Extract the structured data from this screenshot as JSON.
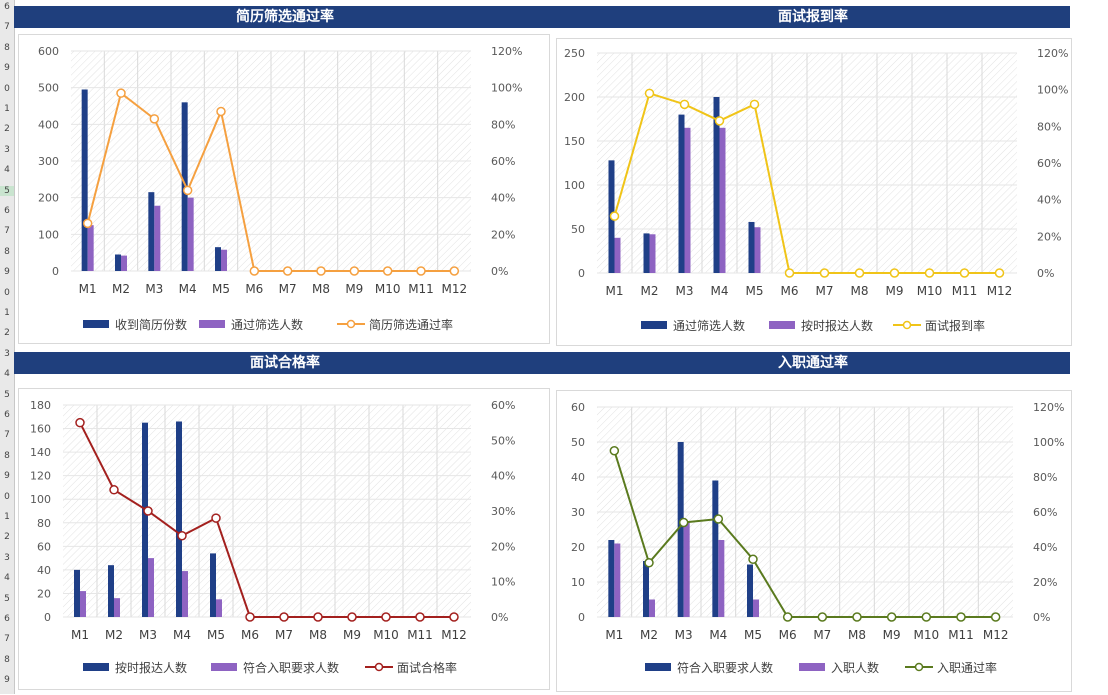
{
  "row_header": [
    "6",
    "7",
    "8",
    "9",
    "0",
    "1",
    "2",
    "3",
    "4",
    "5",
    "6",
    "7",
    "8",
    "9",
    "0",
    "1",
    "2",
    "3",
    "4",
    "5",
    "6",
    "7",
    "8",
    "9",
    "0",
    "1",
    "2",
    "3",
    "4",
    "5",
    "6",
    "7",
    "8",
    "9"
  ],
  "charts": [
    {
      "band_title": "简历筛选通过率",
      "chart_data": {
        "type": "bar+line",
        "categories": [
          "M1",
          "M2",
          "M3",
          "M4",
          "M5",
          "M6",
          "M7",
          "M8",
          "M9",
          "M10",
          "M11",
          "M12"
        ],
        "ylim": [
          0,
          600
        ],
        "yticks": [
          "0",
          "100",
          "200",
          "300",
          "400",
          "500",
          "600"
        ],
        "y2lim": [
          0,
          1.2
        ],
        "y2ticks": [
          "0%",
          "20%",
          "40%",
          "60%",
          "80%",
          "100%",
          "120%"
        ],
        "series": [
          {
            "name": "收到简历份数",
            "kind": "bar",
            "color": "#1f3f87",
            "values": [
              495,
              45,
              215,
              460,
              65,
              0,
              0,
              0,
              0,
              0,
              0,
              0
            ]
          },
          {
            "name": "通过筛选人数",
            "kind": "bar",
            "color": "#8e63c2",
            "values": [
              125,
              42,
              178,
              200,
              58,
              0,
              0,
              0,
              0,
              0,
              0,
              0
            ]
          },
          {
            "name": "简历筛选通过率",
            "kind": "line",
            "axis": "right",
            "color": "#f5a040",
            "marker_fill": "#ffffff",
            "values": [
              0.26,
              0.97,
              0.83,
              0.44,
              0.87,
              0,
              0,
              0,
              0,
              0,
              0,
              0
            ]
          }
        ],
        "grid": true,
        "legend_position": "bottom"
      }
    },
    {
      "band_title": "面试报到率",
      "chart_data": {
        "type": "bar+line",
        "categories": [
          "M1",
          "M2",
          "M3",
          "M4",
          "M5",
          "M6",
          "M7",
          "M8",
          "M9",
          "M10",
          "M11",
          "M12"
        ],
        "ylim": [
          0,
          250
        ],
        "yticks": [
          "0",
          "50",
          "100",
          "150",
          "200",
          "250"
        ],
        "y2lim": [
          0,
          1.2
        ],
        "y2ticks": [
          "0%",
          "20%",
          "40%",
          "60%",
          "80%",
          "100%",
          "120%"
        ],
        "series": [
          {
            "name": "通过筛选人数",
            "kind": "bar",
            "color": "#1f3f87",
            "values": [
              128,
              45,
              180,
              200,
              58,
              0,
              0,
              0,
              0,
              0,
              0,
              0
            ]
          },
          {
            "name": "按时报达人数",
            "kind": "bar",
            "color": "#8e63c2",
            "values": [
              40,
              44,
              165,
              165,
              52,
              0,
              0,
              0,
              0,
              0,
              0,
              0
            ]
          },
          {
            "name": "面试报到率",
            "kind": "line",
            "axis": "right",
            "color": "#f0c418",
            "marker_fill": "#ffffff",
            "values": [
              0.31,
              0.98,
              0.92,
              0.83,
              0.92,
              0,
              0,
              0,
              0,
              0,
              0,
              0
            ]
          }
        ],
        "grid": true,
        "legend_position": "bottom"
      }
    },
    {
      "band_title": "面试合格率",
      "chart_data": {
        "type": "bar+line",
        "categories": [
          "M1",
          "M2",
          "M3",
          "M4",
          "M5",
          "M6",
          "M7",
          "M8",
          "M9",
          "M10",
          "M11",
          "M12"
        ],
        "ylim": [
          0,
          180
        ],
        "yticks": [
          "0",
          "20",
          "40",
          "60",
          "80",
          "100",
          "120",
          "140",
          "160",
          "180"
        ],
        "y2lim": [
          0,
          0.6
        ],
        "y2ticks": [
          "0%",
          "10%",
          "20%",
          "30%",
          "40%",
          "50%",
          "60%"
        ],
        "series": [
          {
            "name": "按时报达人数",
            "kind": "bar",
            "color": "#1f3f87",
            "values": [
              40,
              44,
              165,
              166,
              54,
              0,
              0,
              0,
              0,
              0,
              0,
              0
            ]
          },
          {
            "name": "符合入职要求人数",
            "kind": "bar",
            "color": "#8e63c2",
            "values": [
              22,
              16,
              50,
              39,
              15,
              0,
              0,
              0,
              0,
              0,
              0,
              0
            ]
          },
          {
            "name": "面试合格率",
            "kind": "line",
            "axis": "right",
            "color": "#a3201e",
            "marker_fill": "#ffffff",
            "values": [
              0.55,
              0.36,
              0.3,
              0.23,
              0.28,
              0,
              0,
              0,
              0,
              0,
              0,
              0
            ]
          }
        ],
        "grid": true,
        "legend_position": "bottom"
      }
    },
    {
      "band_title": "入职通过率",
      "chart_data": {
        "type": "bar+line",
        "categories": [
          "M1",
          "M2",
          "M3",
          "M4",
          "M5",
          "M6",
          "M7",
          "M8",
          "M9",
          "M10",
          "M11",
          "M12"
        ],
        "ylim": [
          0,
          60
        ],
        "yticks": [
          "0",
          "10",
          "20",
          "30",
          "40",
          "50",
          "60"
        ],
        "y2lim": [
          0,
          1.2
        ],
        "y2ticks": [
          "0%",
          "20%",
          "40%",
          "60%",
          "80%",
          "100%",
          "120%"
        ],
        "series": [
          {
            "name": "符合入职要求人数",
            "kind": "bar",
            "color": "#1f3f87",
            "values": [
              22,
              16,
              50,
              39,
              15,
              0,
              0,
              0,
              0,
              0,
              0,
              0
            ]
          },
          {
            "name": "入职人数",
            "kind": "bar",
            "color": "#8e63c2",
            "values": [
              21,
              5,
              27,
              22,
              5,
              0,
              0,
              0,
              0,
              0,
              0,
              0
            ]
          },
          {
            "name": "入职通过率",
            "kind": "line",
            "axis": "right",
            "color": "#5a7a1e",
            "marker_fill": "#ffffff",
            "values": [
              0.95,
              0.31,
              0.54,
              0.56,
              0.33,
              0,
              0,
              0,
              0,
              0,
              0,
              0
            ]
          }
        ],
        "grid": true,
        "legend_position": "bottom"
      }
    }
  ]
}
